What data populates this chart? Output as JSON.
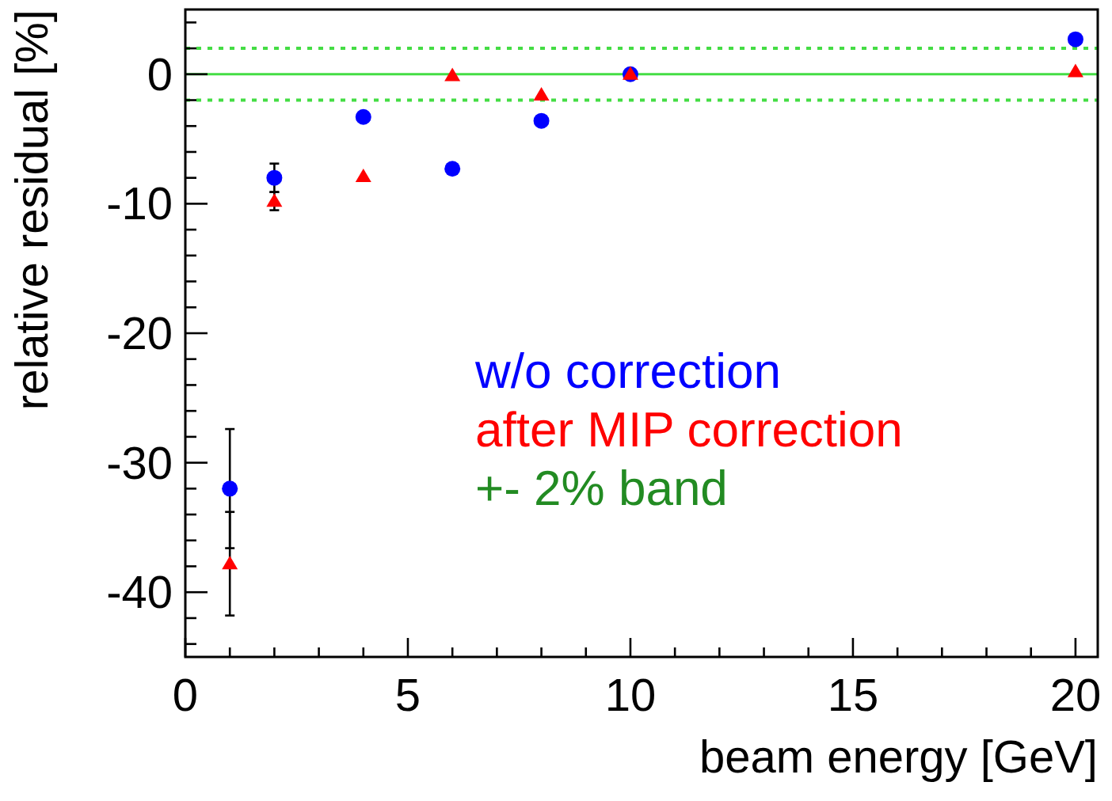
{
  "chart_data": {
    "type": "scatter",
    "xlabel": "beam energy [GeV]",
    "ylabel": "relative residual [%]",
    "xlim": [
      0,
      20.5
    ],
    "ylim": [
      -45,
      5
    ],
    "xticks": [
      0,
      {
        "value": 1,
        "label": null
      },
      {
        "value": 2,
        "label": null
      },
      {
        "value": 3,
        "label": null
      },
      {
        "value": 4,
        "label": null
      },
      5,
      {
        "value": 6,
        "label": null
      },
      {
        "value": 7,
        "label": null
      },
      {
        "value": 8,
        "label": null
      },
      {
        "value": 9,
        "label": null
      },
      10,
      {
        "value": 11,
        "label": null
      },
      {
        "value": 12,
        "label": null
      },
      {
        "value": 13,
        "label": null
      },
      {
        "value": 14,
        "label": null
      },
      15,
      {
        "value": 16,
        "label": null
      },
      {
        "value": 17,
        "label": null
      },
      {
        "value": 18,
        "label": null
      },
      {
        "value": 19,
        "label": null
      },
      20
    ],
    "yticks": [
      {
        "value": -44,
        "label": null
      },
      {
        "value": -42,
        "label": null
      },
      -40,
      {
        "value": -38,
        "label": null
      },
      {
        "value": -36,
        "label": null
      },
      {
        "value": -34,
        "label": null
      },
      {
        "value": -32,
        "label": null
      },
      -30,
      {
        "value": -28,
        "label": null
      },
      {
        "value": -26,
        "label": null
      },
      {
        "value": -24,
        "label": null
      },
      {
        "value": -22,
        "label": null
      },
      -20,
      {
        "value": -18,
        "label": null
      },
      {
        "value": -16,
        "label": null
      },
      {
        "value": -14,
        "label": null
      },
      {
        "value": -12,
        "label": null
      },
      -10,
      {
        "value": -8,
        "label": null
      },
      {
        "value": -6,
        "label": null
      },
      {
        "value": -4,
        "label": null
      },
      {
        "value": -2,
        "label": null
      },
      0,
      {
        "value": 2,
        "label": null
      },
      {
        "value": 4,
        "label": null
      }
    ],
    "x": [
      1,
      2,
      4,
      6,
      8,
      10,
      20
    ],
    "series": [
      {
        "name": "w/o correction",
        "color": "#0000ff",
        "marker": "circle",
        "values": [
          -32.0,
          -8.0,
          -3.3,
          -7.3,
          -3.6,
          0,
          2.7
        ],
        "errors": [
          4.6,
          1.1,
          null,
          null,
          null,
          null,
          null
        ]
      },
      {
        "name": "after MIP correction",
        "color": "#ff0000",
        "marker": "triangle",
        "values": [
          -37.8,
          -9.8,
          -7.9,
          -0.1,
          -1.6,
          0,
          0.2
        ],
        "errors": [
          4.0,
          0.7,
          null,
          null,
          null,
          null,
          null
        ]
      }
    ],
    "ref_lines": [
      {
        "axis": "y",
        "value": 0,
        "color": "#44dd44",
        "line_style": "solid"
      },
      {
        "axis": "y",
        "value": 2,
        "color": "#44dd44",
        "line_style": "dotted"
      },
      {
        "axis": "y",
        "value": -2,
        "color": "#44dd44",
        "line_style": "dotted"
      }
    ],
    "annotations": [
      "+- 2% band"
    ],
    "legend": "right"
  }
}
